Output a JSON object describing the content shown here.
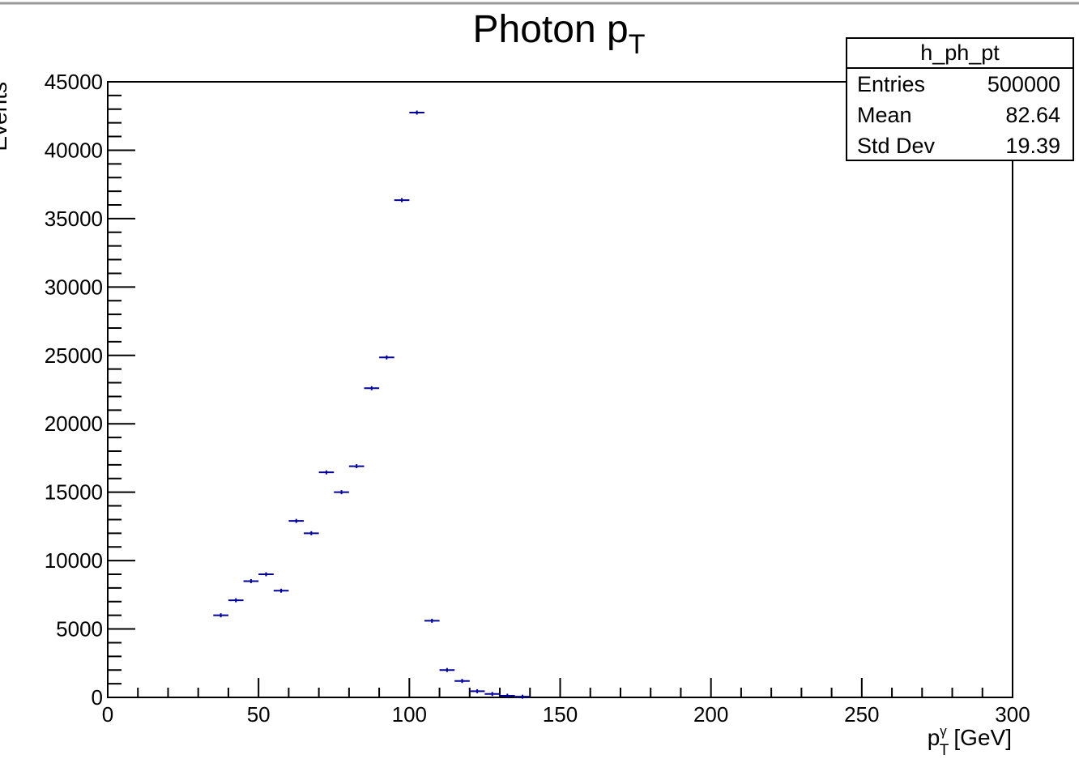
{
  "chart_data": {
    "type": "histogram",
    "title": "Photon p",
    "title_sub": "T",
    "x_label": "p",
    "x_label_sup": "γ",
    "x_label_sub": "T",
    "x_label_unit": "[GeV]",
    "y_label": "Events",
    "bins": [
      35,
      40,
      45,
      50,
      55,
      60,
      65,
      70,
      75,
      80,
      85,
      90,
      95,
      100,
      105,
      110,
      115,
      120,
      125,
      130,
      135,
      140
    ],
    "values": [
      6000,
      7100,
      8500,
      9000,
      7800,
      12900,
      12000,
      16450,
      15000,
      16900,
      22600,
      24850,
      36350,
      42750,
      5600,
      2000,
      1200,
      450,
      250,
      120,
      50
    ],
    "color": "#000099",
    "xlim": [
      0,
      300
    ],
    "xticks": [
      0,
      50,
      100,
      150,
      200,
      250,
      300
    ],
    "ylim": [
      0,
      45000
    ],
    "yticks": [
      0,
      5000,
      10000,
      15000,
      20000,
      25000,
      30000,
      35000,
      40000,
      45000
    ],
    "stats": {
      "title": "h_ph_pt",
      "rows": [
        [
          "Entries",
          "500000"
        ],
        [
          "Mean",
          "82.64"
        ],
        [
          "Std Dev",
          "19.39"
        ]
      ]
    }
  }
}
